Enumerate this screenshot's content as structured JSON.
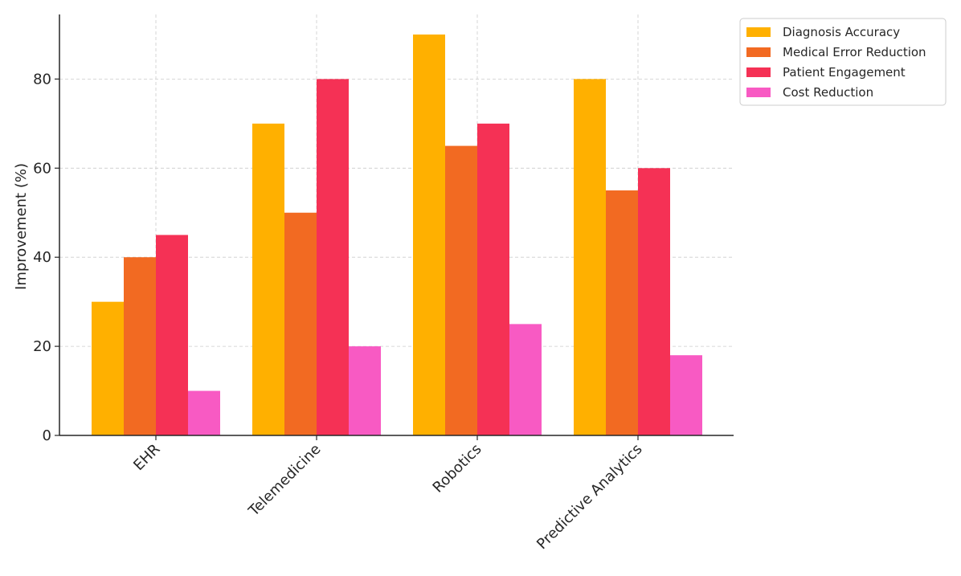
{
  "chart_data": {
    "type": "bar",
    "title": "",
    "xlabel": "",
    "ylabel": "Improvement (%)",
    "categories": [
      "EHR",
      "Telemedicine",
      "Robotics",
      "Predictive Analytics"
    ],
    "series": [
      {
        "name": "Diagnosis Accuracy",
        "color": "#ffb000",
        "values": [
          30,
          70,
          90,
          80
        ]
      },
      {
        "name": "Medical Error Reduction",
        "color": "#f26a22",
        "values": [
          40,
          50,
          65,
          55
        ]
      },
      {
        "name": "Patient Engagement",
        "color": "#f53155",
        "values": [
          45,
          80,
          70,
          60
        ]
      },
      {
        "name": "Cost Reduction",
        "color": "#f85ac3",
        "values": [
          10,
          20,
          25,
          18
        ]
      }
    ],
    "ylim": [
      0,
      94.5
    ],
    "yticks": [
      0,
      20,
      40,
      60,
      80
    ],
    "grid": true,
    "legend_position": "top-right outside"
  }
}
